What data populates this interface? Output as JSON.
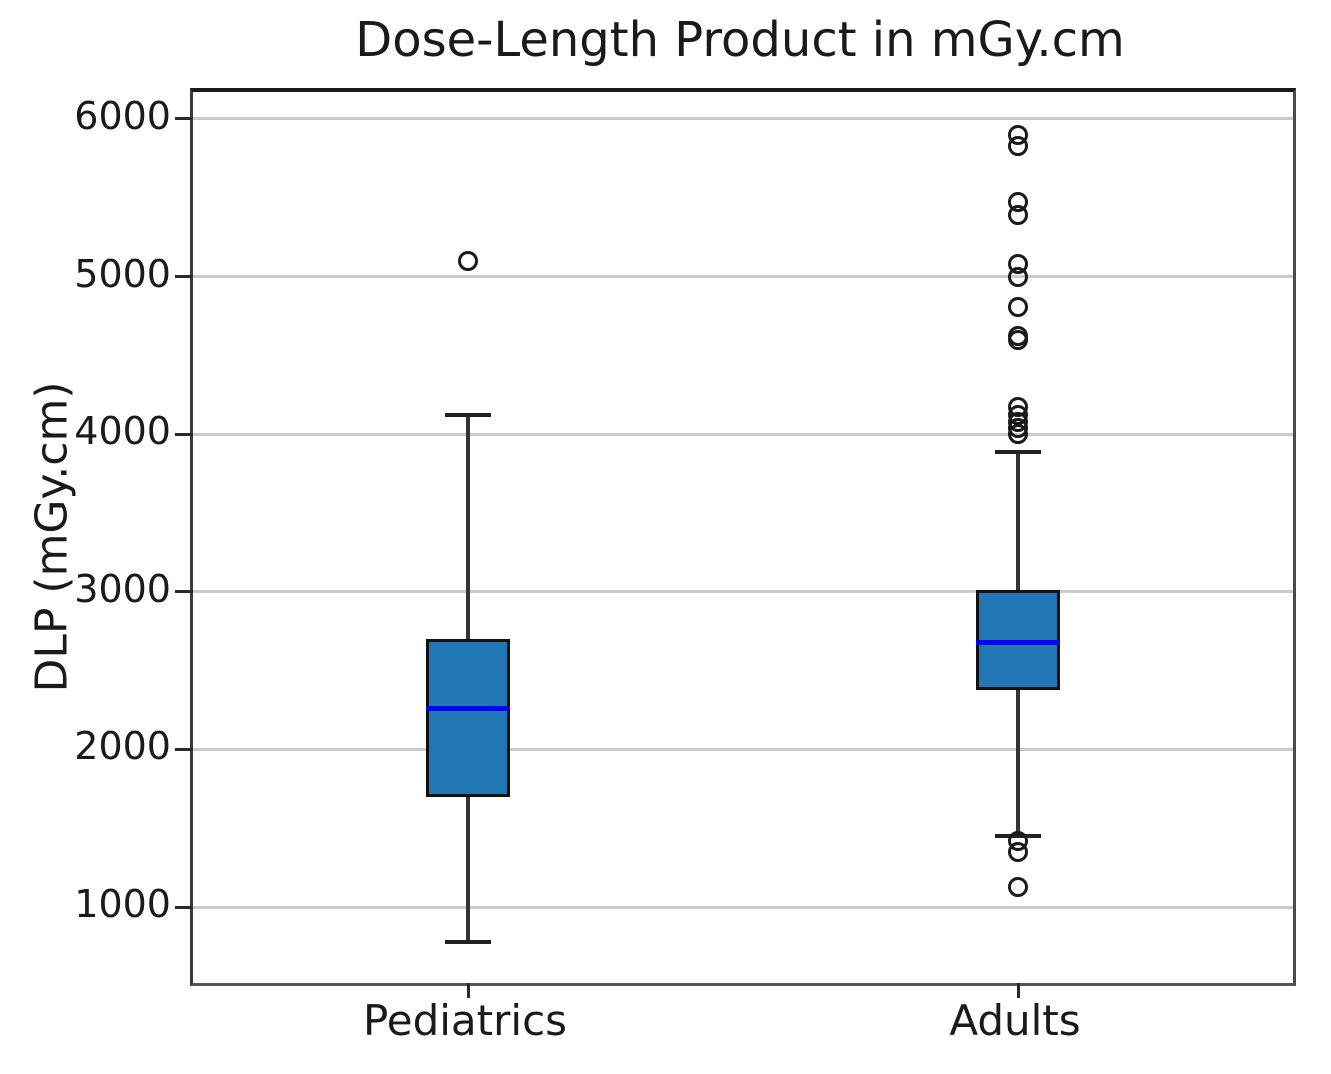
{
  "title": "Dose-Length Product in mGy.cm",
  "y_axis_label": "DLP (mGy.cm)",
  "chart_data": {
    "type": "boxplot",
    "title": "Dose-Length Product in mGy.cm",
    "ylabel": "DLP (mGy.cm)",
    "xlabel": "",
    "categories": [
      "Pediatrics",
      "Adults"
    ],
    "yticks": [
      1000,
      2000,
      3000,
      4000,
      5000,
      6000
    ],
    "ylim": [
      518,
      6171
    ],
    "grid": "horizontal-only",
    "legend": "none",
    "series": [
      {
        "name": "Pediatrics",
        "whisker_low": 775,
        "q1": 1700,
        "median": 2260,
        "q3": 2700,
        "whisker_high": 4120,
        "outliers": [
          5100
        ]
      },
      {
        "name": "Adults",
        "whisker_low": 1450,
        "q1": 2380,
        "median": 2680,
        "q3": 3010,
        "whisker_high": 3890,
        "outliers": [
          5900,
          5830,
          5470,
          5390,
          5080,
          5000,
          4810,
          4620,
          4600,
          4170,
          4120,
          4080,
          4040,
          4000,
          1420,
          1350,
          1130
        ]
      }
    ],
    "colors": {
      "box_fill": "#2077b4",
      "box_edge": "#111111",
      "median": "#0000ff",
      "whisker": "#333333",
      "cap": "#222222",
      "grid": "#cbcbcb",
      "outlier_edge": "#1a1a1a"
    }
  }
}
